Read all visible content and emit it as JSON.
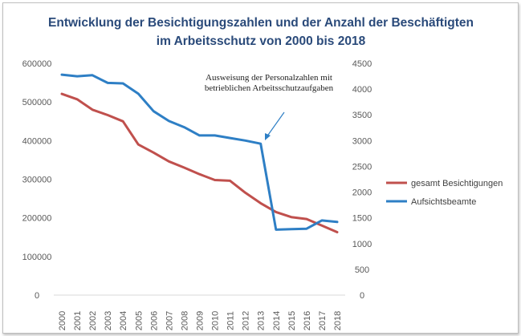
{
  "chart_data": {
    "type": "line",
    "title_lines": [
      "Entwicklung der Besichtigungszahlen und der Anzahl der Beschäftigten",
      "im Arbeitsschutz von 2000 bis 2018"
    ],
    "categories": [
      "2000",
      "2001",
      "2002",
      "2003",
      "2004",
      "2005",
      "2006",
      "2007",
      "2008",
      "2009",
      "2010",
      "2011",
      "2012",
      "2013",
      "2014",
      "2015",
      "2016",
      "2017",
      "2018"
    ],
    "y_left": {
      "min": 0,
      "max": 600000,
      "step": 100000,
      "ticks": [
        "0",
        "100000",
        "200000",
        "300000",
        "400000",
        "500000",
        "600000"
      ]
    },
    "y_right": {
      "min": 0,
      "max": 4500,
      "step": 500,
      "ticks": [
        "0",
        "500",
        "1000",
        "1500",
        "2000",
        "2500",
        "3000",
        "3500",
        "4000",
        "4500"
      ]
    },
    "series": [
      {
        "name": "gesamt Besichtigungen",
        "axis": "left",
        "color": "#c0504d",
        "values": [
          521000,
          507000,
          480000,
          466000,
          450000,
          390000,
          369000,
          346000,
          330000,
          313000,
          298000,
          296000,
          265000,
          238000,
          215000,
          202000,
          197000,
          180000,
          163000
        ]
      },
      {
        "name": "Aufsichtsbeamte",
        "axis": "right",
        "color": "#2e7fc5",
        "values": [
          4280,
          4250,
          4270,
          4120,
          4110,
          3910,
          3570,
          3380,
          3260,
          3100,
          3100,
          3050,
          3000,
          2940,
          1270,
          1280,
          1290,
          1450,
          1420
        ]
      }
    ],
    "annotation": {
      "lines": [
        "Ausweisung der Personalzahlen mit",
        "betrieblichen Arbeitsschutzaufgaben"
      ],
      "points_to_year": "2013"
    },
    "legend_position": "right"
  }
}
